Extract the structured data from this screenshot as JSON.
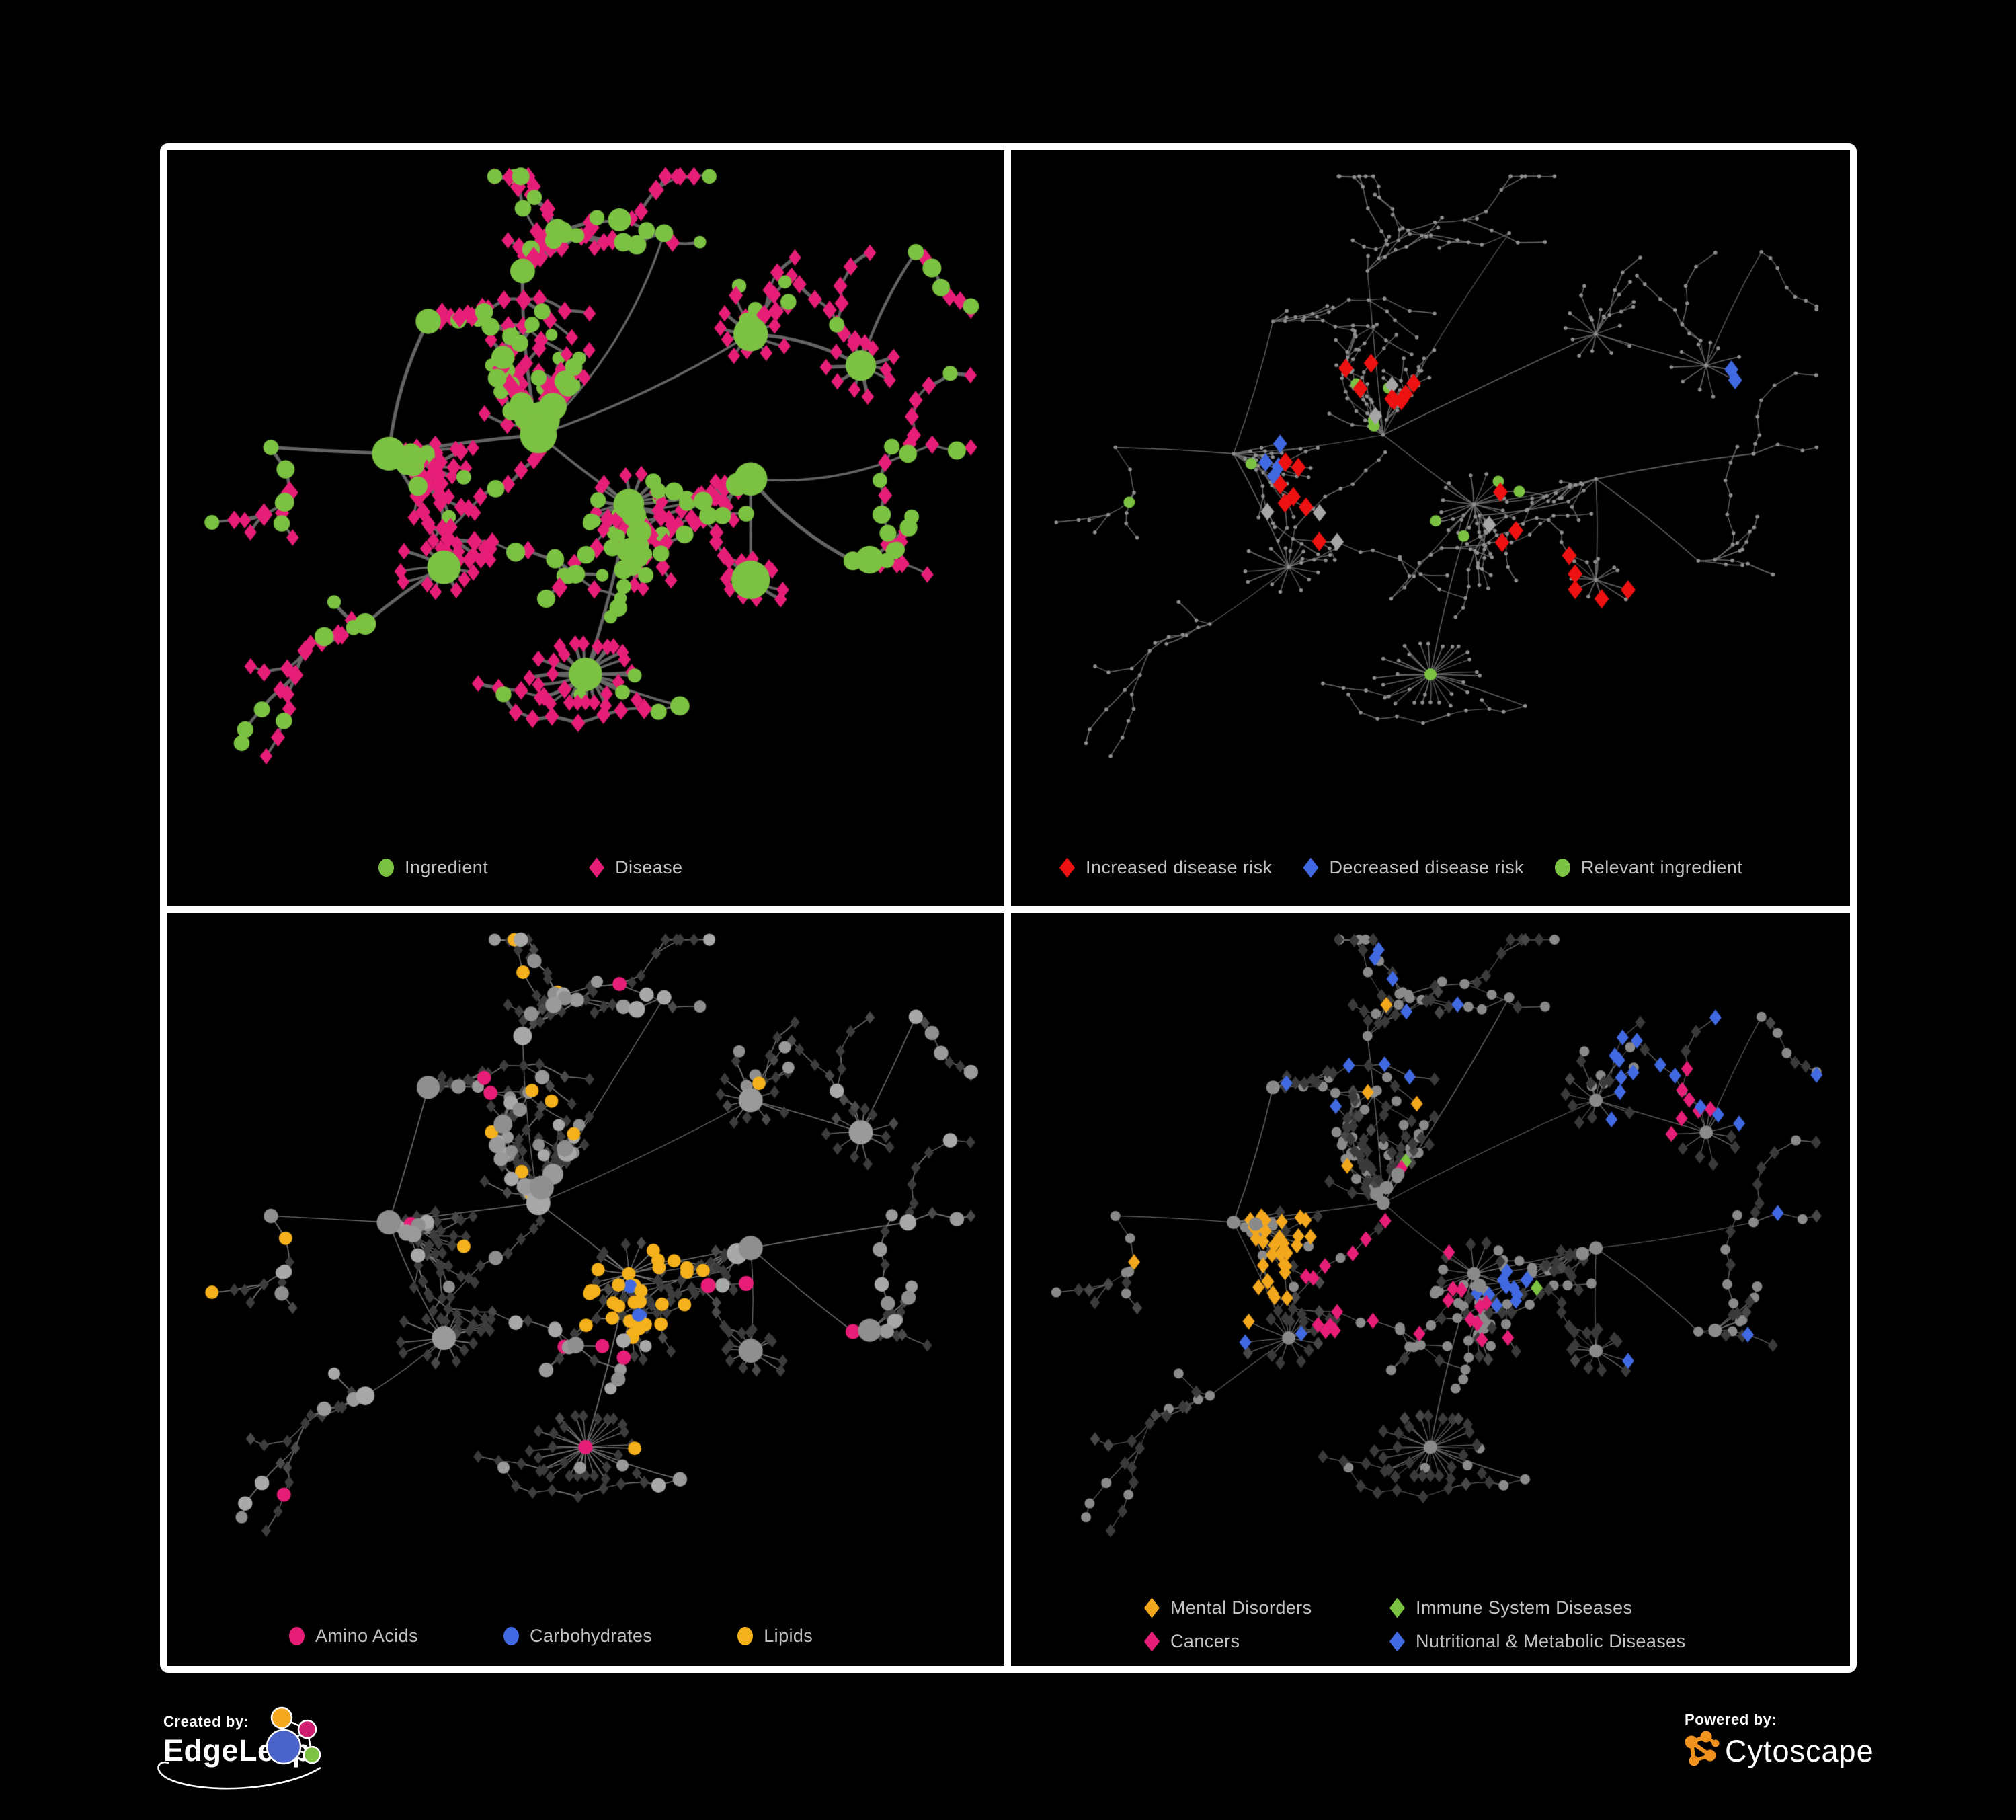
{
  "page": {
    "background": "#000000",
    "frame_color": "#ffffff"
  },
  "panels": {
    "top_left": {
      "legend": [
        {
          "label": "Ingredient",
          "shape": "circle",
          "color": "#7cc242"
        },
        {
          "label": "Disease",
          "shape": "diamond",
          "color": "#e61e78"
        }
      ]
    },
    "top_right": {
      "legend": [
        {
          "label": "Increased disease risk",
          "shape": "diamond",
          "color": "#ee1111"
        },
        {
          "label": "Decreased disease risk",
          "shape": "diamond",
          "color": "#4169e1"
        },
        {
          "label": "Relevant ingredient",
          "shape": "circle",
          "color": "#7cc242"
        }
      ]
    },
    "bottom_left": {
      "legend": [
        {
          "label": "Amino Acids",
          "shape": "circle",
          "color": "#e61e78"
        },
        {
          "label": "Carbohydrates",
          "shape": "circle",
          "color": "#4169e1"
        },
        {
          "label": "Lipids",
          "shape": "circle",
          "color": "#f5b11b"
        }
      ]
    },
    "bottom_right": {
      "legend": [
        {
          "label": "Mental Disorders",
          "shape": "diamond",
          "color": "#f2a71d"
        },
        {
          "label": "Immune System Diseases",
          "shape": "diamond",
          "color": "#7cc242"
        },
        {
          "label": "Cancers",
          "shape": "diamond",
          "color": "#e61e78"
        },
        {
          "label": "Nutritional & Metabolic Diseases",
          "shape": "diamond",
          "color": "#4169e1"
        }
      ]
    }
  },
  "footer": {
    "created_by_label": "Created by:",
    "created_by_brand": "EdgeLeap",
    "powered_by_label": "Powered by:",
    "powered_by_brand": "Cytoscape",
    "cytoscape_color": "#f0921e",
    "edgeleap_colors": {
      "orange": "#f5a81e",
      "magenta": "#d01e70",
      "blue": "#4a63c8",
      "green": "#7dc242"
    }
  },
  "chart_data": {
    "type": "network",
    "shared_layout": true,
    "description": "Four views of the same ingredient-disease association network on black panels",
    "panels": [
      {
        "id": "ingredient-disease",
        "legend": [
          {
            "label": "Ingredient",
            "marker": "circle",
            "color": "#7cc242"
          },
          {
            "label": "Disease",
            "marker": "diamond",
            "color": "#e61e78"
          }
        ],
        "approx_node_counts": {
          "ingredient": 175,
          "disease": 395
        }
      },
      {
        "id": "disease-risk",
        "legend": [
          {
            "label": "Increased disease risk",
            "marker": "diamond",
            "color": "#ee1111"
          },
          {
            "label": "Decreased disease risk",
            "marker": "diamond",
            "color": "#4169e1"
          },
          {
            "label": "Relevant ingredient",
            "marker": "circle",
            "color": "#7cc242"
          }
        ],
        "approx_node_counts": {
          "increased_risk": 30,
          "decreased_risk": 9,
          "neutral_risk": 8,
          "relevant_ingredient": 32,
          "other": 490
        }
      },
      {
        "id": "nutrient-classes",
        "legend": [
          {
            "label": "Amino Acids",
            "marker": "circle",
            "color": "#e61e78"
          },
          {
            "label": "Carbohydrates",
            "marker": "circle",
            "color": "#4169e1"
          },
          {
            "label": "Lipids",
            "marker": "circle",
            "color": "#f5b11b"
          }
        ],
        "approx_node_counts": {
          "amino_acids": 18,
          "carbohydrates": 12,
          "lipids": 58,
          "other": 480
        }
      },
      {
        "id": "disease-classes",
        "legend": [
          {
            "label": "Mental Disorders",
            "marker": "diamond",
            "color": "#f2a71d"
          },
          {
            "label": "Immune System Diseases",
            "marker": "diamond",
            "color": "#7cc242"
          },
          {
            "label": "Cancers",
            "marker": "diamond",
            "color": "#e61e78"
          },
          {
            "label": "Nutritional & Metabolic Diseases",
            "marker": "diamond",
            "color": "#4169e1"
          }
        ],
        "approx_node_counts": {
          "mental_disorders": 85,
          "cancers": 55,
          "immune_system_diseases": 9,
          "nutritional_metabolic_diseases": 75,
          "other": 345
        }
      }
    ],
    "render": {
      "seed": 91,
      "cross": 16,
      "crossDist": 0.17,
      "anchors": [
        {
          "x": 0.44,
          "y": 0.42,
          "n": 85,
          "step": 0.026,
          "chainP": 0.3,
          "pI": 0.34
        },
        {
          "x": 0.555,
          "y": 0.53,
          "n": 30,
          "step": 0.024,
          "chainP": 0.35,
          "pI": 0.72,
          "burst": 16,
          "burstR": 0.045,
          "link": 0,
          "leafI": 0.5
        },
        {
          "x": 0.25,
          "y": 0.45,
          "n": 62,
          "step": 0.028,
          "chainP": 0.35,
          "pI": 0.3,
          "link": 0
        },
        {
          "x": 0.5,
          "y": 0.8,
          "n": 6,
          "step": 0.03,
          "chainP": 0.5,
          "pI": 0.2,
          "burst": 26,
          "burstR": 0.055,
          "link": 1,
          "leafI": 0.06
        },
        {
          "x": 0.42,
          "y": 0.16,
          "n": 40,
          "step": 0.028,
          "chainP": 0.72,
          "pI": 0.3,
          "link": 0
        },
        {
          "x": 0.3,
          "y": 0.24,
          "n": 26,
          "step": 0.028,
          "chainP": 0.7,
          "pI": 0.3,
          "link": 2
        },
        {
          "x": 0.71,
          "y": 0.26,
          "n": 14,
          "step": 0.028,
          "chainP": 0.6,
          "pI": 0.25,
          "burst": 10,
          "burstR": 0.04,
          "link": 0,
          "leafI": 0.08
        },
        {
          "x": 0.85,
          "y": 0.31,
          "n": 12,
          "step": 0.028,
          "chainP": 0.65,
          "pI": 0.25,
          "burst": 11,
          "burstR": 0.042,
          "link": 6,
          "leafI": 0.08
        },
        {
          "x": 0.71,
          "y": 0.49,
          "n": 30,
          "step": 0.027,
          "chainP": 0.55,
          "pI": 0.3,
          "link": 1
        },
        {
          "x": 0.71,
          "y": 0.65,
          "n": 12,
          "step": 0.026,
          "chainP": 0.6,
          "pI": 0.2,
          "burst": 11,
          "burstR": 0.04,
          "link": 8,
          "leafI": 0.07
        },
        {
          "x": 0.84,
          "y": 0.62,
          "n": 20,
          "step": 0.028,
          "chainP": 0.6,
          "pI": 0.3,
          "link": 8
        },
        {
          "x": 0.32,
          "y": 0.63,
          "n": 14,
          "step": 0.027,
          "chainP": 0.6,
          "pI": 0.22,
          "burst": 13,
          "burstR": 0.045,
          "link": 2,
          "leafI": 0.07
        },
        {
          "x": 0.22,
          "y": 0.72,
          "n": 22,
          "step": 0.028,
          "chainP": 0.75,
          "pI": 0.28,
          "link": 11
        },
        {
          "x": 0.1,
          "y": 0.44,
          "n": 12,
          "step": 0.028,
          "chainP": 0.7,
          "pI": 0.3,
          "link": 2
        },
        {
          "x": 0.45,
          "y": 0.68,
          "n": 20,
          "step": 0.028,
          "chainP": 0.7,
          "pI": 0.3,
          "link": 1
        },
        {
          "x": 0.62,
          "y": 0.85,
          "n": 10,
          "step": 0.028,
          "chainP": 0.7,
          "pI": 0.25,
          "link": 3
        },
        {
          "x": 0.6,
          "y": 0.1,
          "n": 14,
          "step": 0.028,
          "chainP": 0.75,
          "pI": 0.3,
          "link": 0
        },
        {
          "x": 0.92,
          "y": 0.13,
          "n": 8,
          "step": 0.026,
          "chainP": 0.7,
          "pI": 0.25,
          "link": 7
        },
        {
          "x": 0.91,
          "y": 0.45,
          "n": 10,
          "step": 0.026,
          "chainP": 0.75,
          "pI": 0.3,
          "link": 8
        }
      ],
      "panel_styles": {
        "top_left": {
          "edge": "#696969",
          "edgeW": 4.2,
          "edgeA": 0.95,
          "bow": 0.13,
          "areaH": 0.86,
          "ingredient": "#7cc242",
          "disease": "#e61e78",
          "seed": 11
        },
        "top_right": {
          "edge": "#6e6e6e",
          "edgeW": 1.4,
          "edgeA": 0.9,
          "bow": 0.05,
          "areaH": 0.86,
          "base": "#8e8e8e",
          "red": "#ee1111",
          "blue": "#4169e1",
          "grayd": "#a6a6a6",
          "green": "#7cc242",
          "seed": 22
        },
        "bottom_left": {
          "edge": "#8f8f8f",
          "edgeW": 1.5,
          "edgeA": 0.8,
          "bow": 0.05,
          "areaH": 0.88,
          "diamond": "#3c3c3c",
          "diamond2": "#4a4a4a",
          "circle": "#9e9e9e",
          "amino": "#e61e78",
          "carb": "#4169e1",
          "lipid": "#f5b11b",
          "seed": 33
        },
        "bottom_right": {
          "edge": "#7f7f7f",
          "edgeW": 1.2,
          "edgeA": 0.8,
          "bow": 0.04,
          "areaH": 0.88,
          "diamond": "#3a3a3a",
          "diamond2": "#484848",
          "circle": "#8a8a8a",
          "mental": "#f2a71d",
          "cancer": "#e61e78",
          "immune": "#7cc242",
          "nutri": "#4169e1",
          "seed": 44
        }
      }
    }
  }
}
